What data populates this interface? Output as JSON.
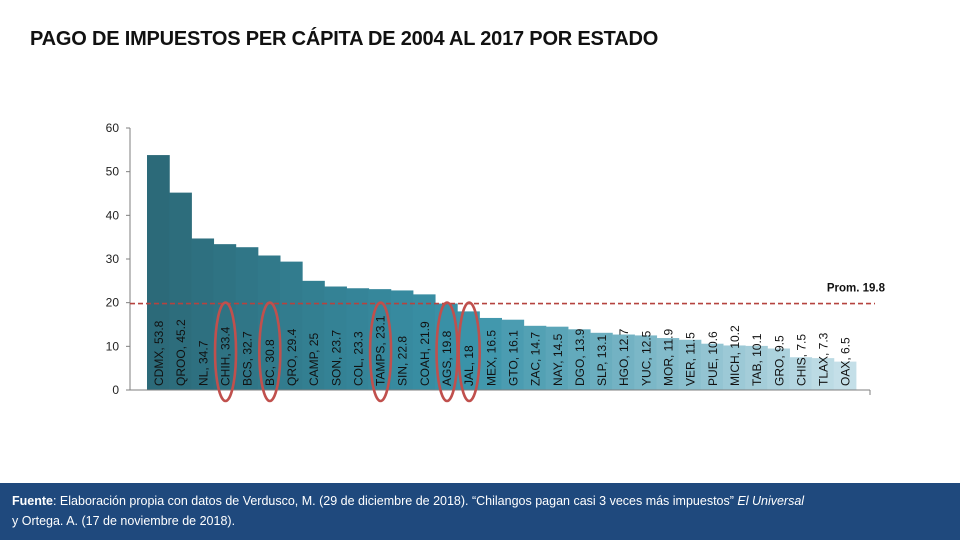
{
  "slide": {
    "title": "PAGO DE IMPUESTOS PER CÁPITA DE 2004 AL 2017 POR ESTADO"
  },
  "footer": {
    "label": "Fuente",
    "line1": ": Elaboración propia con datos de Verdusco, M. (29 de diciembre de 2018). “Chilangos pagan casi 3 veces más impuestos” ",
    "italic": "El Universal",
    "line2": "y Ortega. A.  (17 de noviembre  de 2018)."
  },
  "chart_data": {
    "type": "bar",
    "title": "PAGO DE IMPUESTOS PER CÁPITA DE 2004 AL 2017 POR ESTADO",
    "xlabel": "",
    "ylabel": "",
    "ylim": [
      0,
      60
    ],
    "yticks": [
      0,
      10,
      20,
      30,
      40,
      50,
      60
    ],
    "grid": false,
    "legend": "none",
    "categories": [
      "CDMX",
      "QROO",
      "NL",
      "CHIH",
      "BCS",
      "BC",
      "QRO",
      "CAMP",
      "SON",
      "COL",
      "TAMPS",
      "SIN",
      "COAH",
      "AGS",
      "JAL",
      "MEX",
      "GTO",
      "ZAC",
      "NAY",
      "DGO",
      "SLP",
      "HGO",
      "YUC",
      "MOR",
      "VER",
      "PUE",
      "MICH",
      "TAB",
      "GRO",
      "CHIS",
      "TLAX",
      "OAX"
    ],
    "values": [
      53.8,
      45.2,
      34.7,
      33.4,
      32.7,
      30.8,
      29.4,
      25,
      23.7,
      23.3,
      23.1,
      22.8,
      21.9,
      19.8,
      18,
      16.5,
      16.1,
      14.7,
      14.5,
      13.9,
      13.1,
      12.7,
      12.5,
      11.9,
      11.5,
      10.6,
      10.2,
      10.1,
      9.5,
      7.5,
      7.3,
      6.5
    ],
    "data_labels": [
      "CDMX, 53.8",
      "QROO, 45.2",
      "NL, 34.7",
      "CHIH, 33.4",
      "BCS, 32.7",
      "BC, 30.8",
      "QRO, 29.4",
      "CAMP, 25",
      "SON, 23.7",
      "COL, 23.3",
      "TAMPS, 23.1",
      "SIN, 22.8",
      "COAH, 21.9",
      "AGS, 19.8",
      "JAL, 18",
      "MEX, 16.5",
      "GTO, 16.1",
      "ZAC, 14.7",
      "NAY, 14.5",
      "DGO, 13.9",
      "SLP, 13.1",
      "HGO, 12.7",
      "YUC, 12.5",
      "MOR, 11.9",
      "VER, 11.5",
      "PUE, 10.6",
      "MICH, 10.2",
      "TAB, 10.1",
      "GRO, 9.5",
      "CHIS, 7.5",
      "TLAX, 7.3",
      "OAX, 6.5"
    ],
    "average": {
      "label": "Prom. 19.8",
      "value": 19.8
    },
    "highlighted": [
      "CHIH",
      "BC",
      "TAMPS",
      "AGS",
      "JAL"
    ],
    "colors": {
      "bar_start": "#2c6a79",
      "bar_mid": "#3a93a9",
      "bar_end": "#c4dfe8",
      "average_line": "#b5433f",
      "highlight": "#c0504d",
      "axis": "#7f7f7f"
    }
  }
}
